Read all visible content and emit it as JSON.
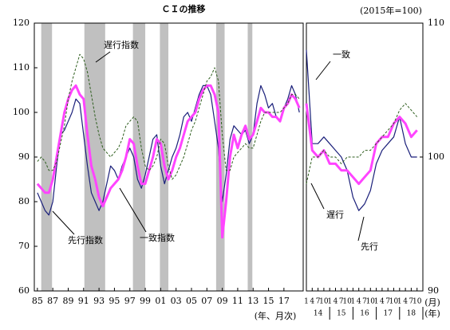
{
  "chart_data": [
    {
      "type": "line",
      "title": "ＣＩの推移",
      "note": "(2015年=100)",
      "xlabel": "(年、月次)",
      "xlim": [
        1984.6,
        2019.5
      ],
      "ylim": [
        60,
        120
      ],
      "yticks": [
        60,
        70,
        80,
        90,
        100,
        110,
        120
      ],
      "xticks": [
        {
          "value": 1985,
          "label": "85"
        },
        {
          "value": 1987,
          "label": "87"
        },
        {
          "value": 1989,
          "label": "89"
        },
        {
          "value": 1991,
          "label": "91"
        },
        {
          "value": 1993,
          "label": "93"
        },
        {
          "value": 1995,
          "label": "95"
        },
        {
          "value": 1997,
          "label": "97"
        },
        {
          "value": 1999,
          "label": "99"
        },
        {
          "value": 2001,
          "label": "01"
        },
        {
          "value": 2003,
          "label": "03"
        },
        {
          "value": 2005,
          "label": "05"
        },
        {
          "value": 2007,
          "label": "07"
        },
        {
          "value": 2009,
          "label": "09"
        },
        {
          "value": 2011,
          "label": "11"
        },
        {
          "value": 2013,
          "label": "13"
        },
        {
          "value": 2015,
          "label": "15"
        },
        {
          "value": 2017,
          "label": "17"
        }
      ],
      "shade_color": "#c0c0c0",
      "shaded_periods": [
        [
          1985.5,
          1986.9
        ],
        [
          1991.1,
          1993.8
        ],
        [
          1997.4,
          1999.0
        ],
        [
          2000.9,
          2002.0
        ],
        [
          2008.2,
          2009.3
        ],
        [
          2012.3,
          2012.9
        ]
      ],
      "x": [
        1985,
        1985.5,
        1986,
        1986.5,
        1987,
        1987.5,
        1988,
        1988.5,
        1989,
        1989.5,
        1990,
        1990.5,
        1991,
        1991.5,
        1992,
        1992.5,
        1993,
        1993.5,
        1994,
        1994.5,
        1995,
        1995.5,
        1996,
        1996.5,
        1997,
        1997.5,
        1998,
        1998.5,
        1999,
        1999.5,
        2000,
        2000.5,
        2001,
        2001.5,
        2002,
        2002.5,
        2003,
        2003.5,
        2004,
        2004.5,
        2005,
        2005.5,
        2006,
        2006.5,
        2007,
        2007.5,
        2008,
        2008.5,
        2009,
        2009.5,
        2010,
        2010.5,
        2011,
        2011.5,
        2012,
        2012.5,
        2013,
        2013.5,
        2014,
        2014.5,
        2015,
        2015.5,
        2016,
        2016.5,
        2017,
        2017.5,
        2018,
        2018.5,
        2019
      ],
      "series": [
        {
          "name": "先行指数",
          "color": "#1a1f7a",
          "width": 1.2,
          "values": [
            82,
            80,
            78,
            77,
            80,
            88,
            95,
            96,
            98,
            100,
            103,
            102,
            95,
            88,
            82,
            80,
            78,
            80,
            84,
            88,
            87,
            85,
            88,
            90,
            92,
            90,
            85,
            83,
            86,
            90,
            94,
            95,
            88,
            84,
            87,
            90,
            92,
            95,
            99,
            100,
            98,
            101,
            104,
            106,
            106,
            104,
            98,
            92,
            80,
            86,
            94,
            97,
            96,
            95,
            96,
            93,
            95,
            102,
            106,
            104,
            101,
            102,
            99,
            98,
            101,
            103,
            106,
            104,
            100
          ]
        },
        {
          "name": "一致指数",
          "color": "#ff44ff",
          "width": 3,
          "values": [
            84,
            83,
            82,
            82,
            85,
            90,
            95,
            100,
            103,
            105,
            106,
            104,
            103,
            95,
            88,
            85,
            81,
            79,
            81,
            83,
            84,
            85,
            87,
            90,
            94,
            93,
            88,
            84,
            84,
            87,
            90,
            94,
            93,
            88,
            85,
            87,
            90,
            92,
            95,
            98,
            99,
            100,
            103,
            105,
            106,
            106,
            104,
            100,
            72,
            80,
            90,
            95,
            92,
            95,
            97,
            94,
            95,
            98,
            101,
            100,
            100,
            99,
            99,
            98,
            101,
            102,
            104,
            103,
            101
          ]
        },
        {
          "name": "遅行指数",
          "color": "#2e5e1e",
          "width": 1,
          "dashed": true,
          "values": [
            89,
            90,
            89,
            87,
            87,
            89,
            93,
            97,
            103,
            107,
            110,
            113,
            112,
            109,
            104,
            99,
            95,
            92,
            91,
            90,
            91,
            92,
            94,
            97,
            98,
            99,
            98,
            92,
            88,
            87,
            88,
            90,
            94,
            93,
            88,
            85,
            86,
            88,
            90,
            93,
            96,
            98,
            101,
            104,
            107,
            108,
            110,
            107,
            95,
            87,
            87,
            90,
            91,
            92,
            93,
            92,
            92,
            95,
            98,
            100,
            100,
            100,
            100,
            100,
            101,
            102,
            104,
            104,
            103
          ]
        }
      ]
    },
    {
      "type": "line",
      "xlabel_month": "(月)",
      "xlabel_year": "(年)",
      "xlim": [
        2014,
        2019
      ],
      "ylim": [
        90,
        110
      ],
      "yticks": [
        90,
        100,
        110
      ],
      "xticks": [
        {
          "value": 2014,
          "label": "1"
        },
        {
          "value": 2014.25,
          "label": "4"
        },
        {
          "value": 2014.5,
          "label": "7"
        },
        {
          "value": 2014.75,
          "label": "10"
        },
        {
          "value": 2015,
          "label": "1"
        },
        {
          "value": 2015.25,
          "label": "4"
        },
        {
          "value": 2015.5,
          "label": "7"
        },
        {
          "value": 2015.75,
          "label": "10"
        },
        {
          "value": 2016,
          "label": "1"
        },
        {
          "value": 2016.25,
          "label": "4"
        },
        {
          "value": 2016.5,
          "label": "7"
        },
        {
          "value": 2016.75,
          "label": "10"
        },
        {
          "value": 2017,
          "label": "1"
        },
        {
          "value": 2017.25,
          "label": "4"
        },
        {
          "value": 2017.5,
          "label": "7"
        },
        {
          "value": 2017.75,
          "label": "10"
        },
        {
          "value": 2018,
          "label": "1"
        },
        {
          "value": 2018.25,
          "label": "4"
        },
        {
          "value": 2018.5,
          "label": "7"
        },
        {
          "value": 2018.75,
          "label": "10"
        }
      ],
      "year_ticks": [
        {
          "value": 2014.5,
          "label": "14"
        },
        {
          "value": 2015.5,
          "label": "15"
        },
        {
          "value": 2016.5,
          "label": "16"
        },
        {
          "value": 2017.5,
          "label": "17"
        },
        {
          "value": 2018.5,
          "label": "18"
        }
      ],
      "x": [
        2014,
        2014.25,
        2014.5,
        2014.75,
        2015,
        2015.25,
        2015.5,
        2015.75,
        2016,
        2016.25,
        2016.5,
        2016.75,
        2017,
        2017.25,
        2017.5,
        2017.75,
        2018,
        2018.25,
        2018.5,
        2018.75
      ],
      "series": [
        {
          "name": "先行",
          "color": "#1a1f7a",
          "width": 1.2,
          "values": [
            108,
            101,
            101,
            101.5,
            101,
            100.5,
            100,
            99,
            97,
            96,
            96.5,
            97.5,
            99.5,
            100.5,
            101,
            101.5,
            103,
            101,
            100,
            100
          ]
        },
        {
          "name": "一致",
          "color": "#ff44ff",
          "width": 3,
          "values": [
            104,
            100.5,
            100,
            100.5,
            99.5,
            99.5,
            99,
            99,
            98.5,
            98,
            98.5,
            99,
            101,
            101.5,
            101.5,
            102.5,
            103,
            102.5,
            101.5,
            102
          ]
        },
        {
          "name": "遅行",
          "color": "#2e5e1e",
          "width": 1,
          "dashed": true,
          "values": [
            98,
            100,
            100,
            100.5,
            100,
            100,
            99.5,
            100,
            100,
            100,
            100.5,
            100.5,
            101,
            101.5,
            102,
            102.5,
            103.5,
            104,
            103.5,
            103
          ]
        }
      ]
    }
  ]
}
